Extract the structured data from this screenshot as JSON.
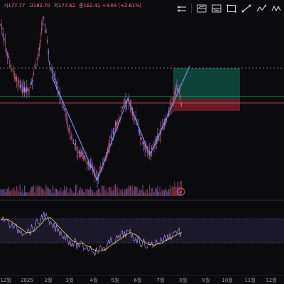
{
  "ohlc": {
    "open_label": "시",
    "open": "177.77",
    "high_label": "고",
    "high": "182.70",
    "low_label": "저",
    "low": "177.62",
    "close_label": "종",
    "close": "182.41",
    "change": "+4.64 (+2.61%)"
  },
  "toolbar": {
    "icons": [
      "horizontal-ray-icon",
      "long-position-icon",
      "short-position-icon",
      "rectangle-icon",
      "trend-line-icon",
      "path-icon",
      "zigzag-icon"
    ]
  },
  "x_axis": {
    "labels": [
      "12월",
      "2025",
      "2월",
      "3월",
      "4월",
      "5월",
      "6월",
      "7월",
      "8월",
      "9월",
      "10월",
      "11월",
      "12월"
    ]
  },
  "colors": {
    "bull": "#a78bfa",
    "bear": "#e0566b",
    "profit_zone": "#0f4d3f",
    "loss_zone": "#7a1f28",
    "sma_line": "#e0c34a",
    "rsi_line": "#a78bfa",
    "pattern_line": "#6f8fe0"
  }
}
